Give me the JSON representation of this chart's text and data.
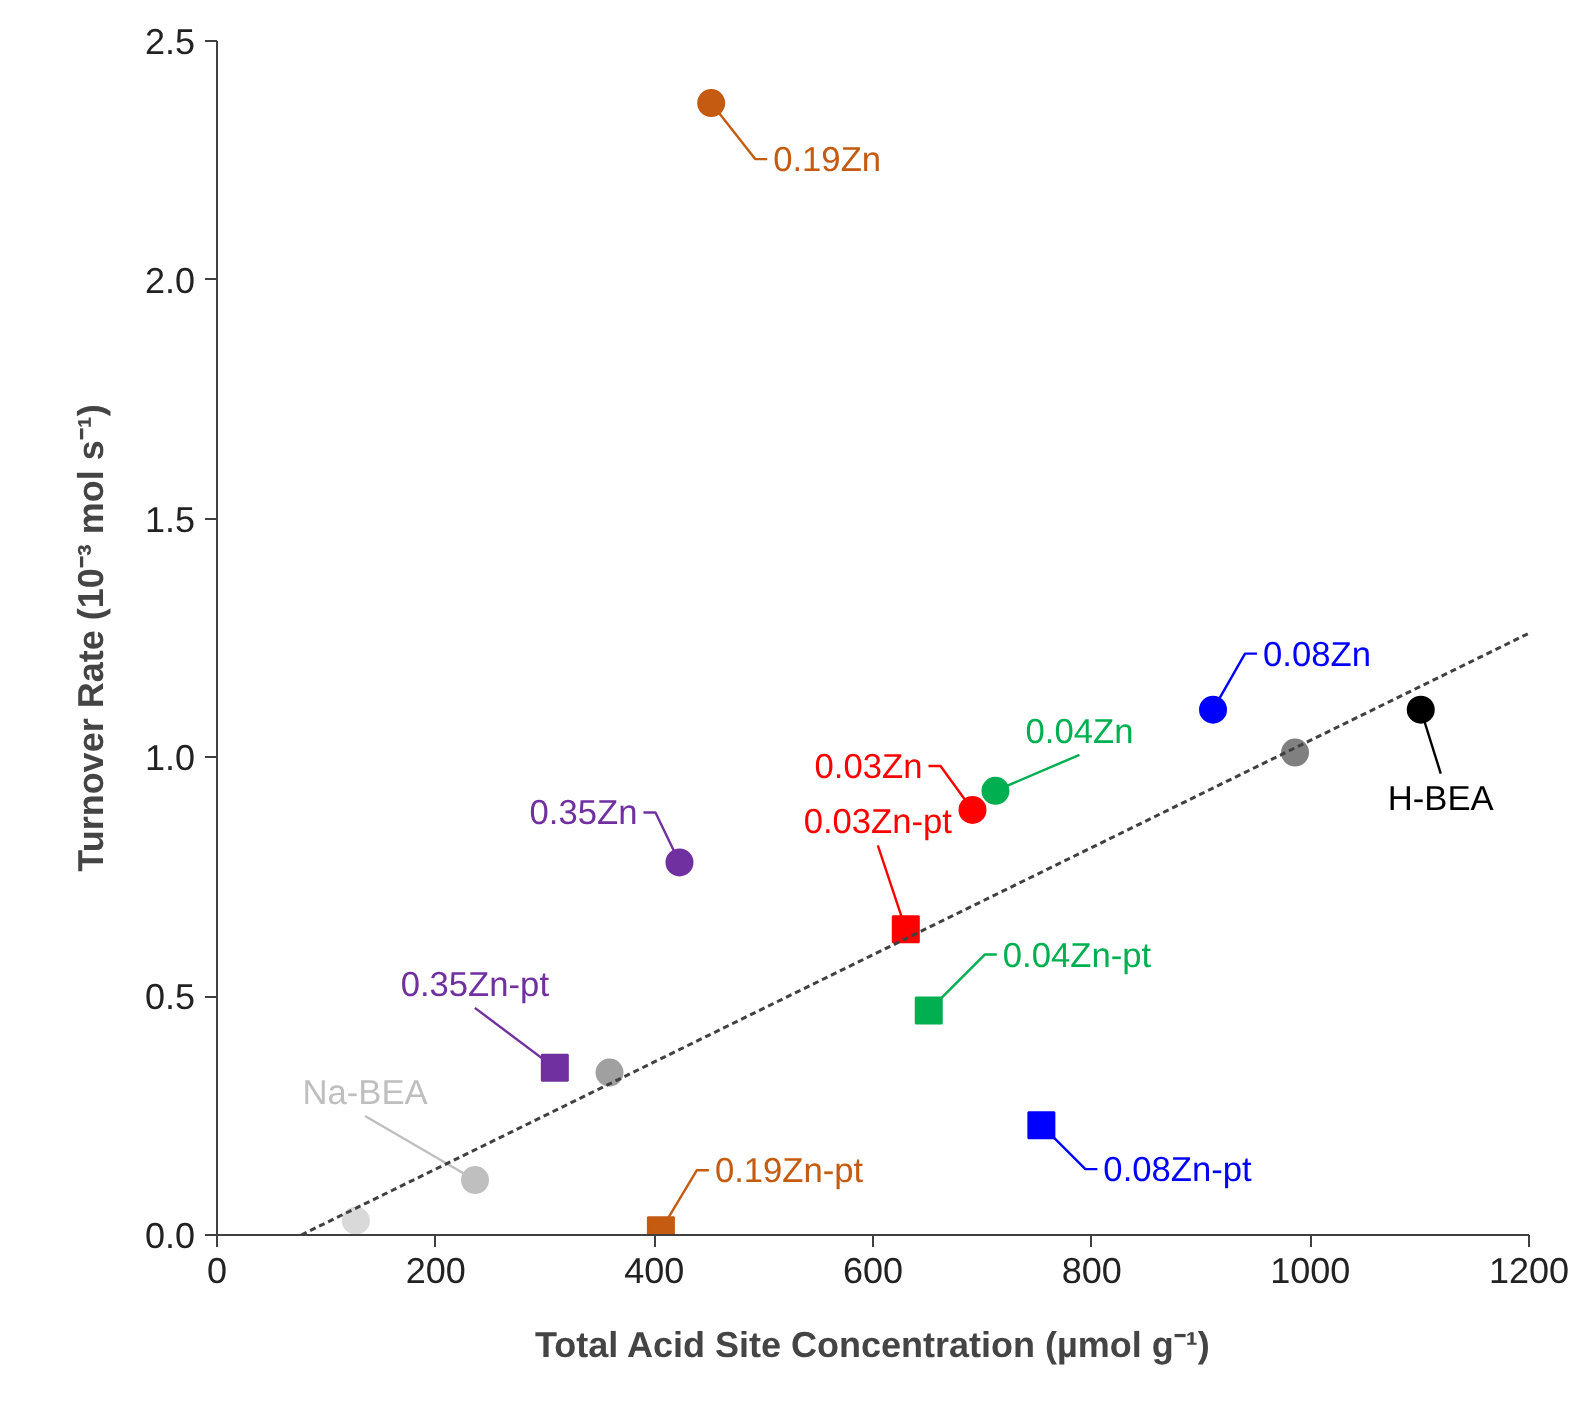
{
  "chart_data": {
    "type": "scatter",
    "xlabel": "Total Acid Site Concentration (µmol g⁻¹)",
    "ylabel": "Turnover Rate (10⁻³ mol s⁻¹)",
    "xlim": [
      0,
      1200
    ],
    "ylim": [
      0,
      2.5
    ],
    "xticks": [
      0,
      200,
      400,
      600,
      800,
      1000,
      1200
    ],
    "yticks": [
      {
        "value": 0,
        "label": "0.0"
      },
      0.5,
      {
        "value": 1,
        "label": "1.0"
      },
      1.5,
      {
        "value": 2,
        "label": "2.0"
      },
      2.5
    ],
    "grid": false,
    "marker": "circle",
    "series": [
      {
        "name": "0.19Zn",
        "color": "#c55a11",
        "x": [
          452
        ],
        "values": [
          2.37
        ]
      },
      {
        "name": "0.08Zn",
        "color": "#0000ff",
        "x": [
          911
        ],
        "values": [
          1.1
        ]
      },
      {
        "name": "H-BEA",
        "color": "#000000",
        "x": [
          1101
        ],
        "values": [
          1.1
        ]
      },
      {
        "name": "0.04Zn",
        "color": "#00b050",
        "x": [
          712
        ],
        "values": [
          0.93
        ]
      },
      {
        "name": "0.03Zn",
        "color": "#ff0000",
        "x": [
          691
        ],
        "values": [
          0.89
        ]
      },
      {
        "name": "0.35Zn",
        "color": "#7030a0",
        "x": [
          423
        ],
        "values": [
          0.78
        ]
      },
      {
        "name": "0.03Zn-pt",
        "color": "#ff0000",
        "marker": "square",
        "x": [
          630
        ],
        "values": [
          0.64
        ]
      },
      {
        "name": "0.04Zn-pt",
        "color": "#00b050",
        "marker": "square",
        "x": [
          651
        ],
        "values": [
          0.47
        ]
      },
      {
        "name": "0.35Zn-pt",
        "color": "#7030a0",
        "marker": "square",
        "x": [
          309
        ],
        "values": [
          0.35
        ]
      },
      {
        "color": "#a0a0a0",
        "x": [
          359
        ],
        "values": [
          0.34
        ]
      },
      {
        "name": "0.08Zn-pt",
        "color": "#0000ff",
        "marker": "square",
        "x": [
          754
        ],
        "values": [
          0.23
        ]
      },
      {
        "name": "Na-BEA",
        "color": "#bfbfbf",
        "x": [
          236
        ],
        "values": [
          0.115
        ]
      },
      {
        "color": "#d9d9d9",
        "x": [
          127
        ],
        "values": [
          0.03
        ]
      },
      {
        "name": "0.19Zn-pt",
        "color": "#c55a11",
        "marker": "square",
        "x": [
          406
        ],
        "values": [
          0.01
        ]
      },
      {
        "color": "#808080",
        "x": [
          986
        ],
        "values": [
          1.01
        ]
      },
      {
        "type": "line",
        "color": "#404040",
        "line_style": "dashed",
        "marker": "none",
        "x": [
          77,
          1200
        ],
        "values": [
          0,
          1.26
        ]
      }
    ]
  }
}
